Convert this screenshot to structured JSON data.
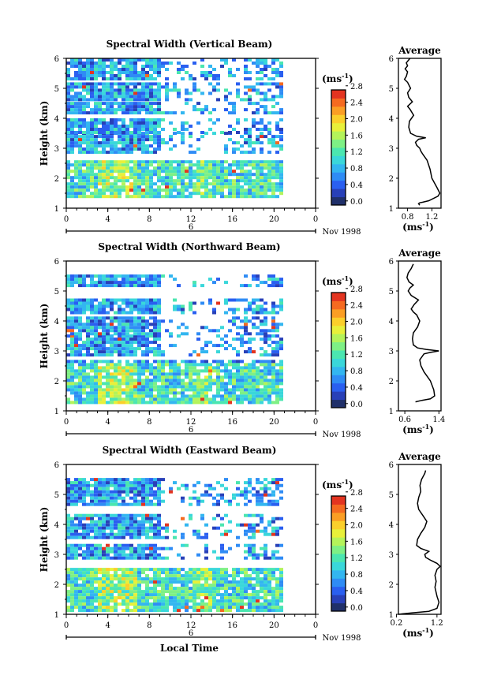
{
  "xlabel": "Local Time",
  "date_label": "Nov 1998",
  "day_label": "6",
  "unit_label": "(ms",
  "unit_sup": "-1",
  "unit_close": ")",
  "ylabel": "Height (km)",
  "colorbar_ticks": [
    "0.0",
    "0.4",
    "0.8",
    "1.2",
    "1.6",
    "2.0",
    "2.4",
    "2.8"
  ],
  "colorbar_colors": [
    "#20306a",
    "#2840b8",
    "#2a5ff0",
    "#2f8cf5",
    "#33b6f0",
    "#3ad7da",
    "#4be6b0",
    "#7ef085",
    "#b4f35a",
    "#e8f03a",
    "#fbcf2b",
    "#fb9e24",
    "#f56a20",
    "#e33420"
  ],
  "time_ticks": [
    "0",
    "4",
    "8",
    "12",
    "16",
    "20",
    "0"
  ],
  "chart_data": [
    {
      "type": "heatmap",
      "title": "Spectral Width (Vertical Beam)",
      "xlabel": "Local Time",
      "ylabel": "Height (km)",
      "xlim": [
        0,
        24
      ],
      "ylim": [
        1,
        6
      ],
      "x_ticks": [
        "0",
        "4",
        "8",
        "12",
        "16",
        "20",
        "0"
      ],
      "y_ticks": [
        "1",
        "2",
        "3",
        "4",
        "5",
        "6"
      ],
      "colorbar": {
        "label": "(ms-1)",
        "range": [
          0.0,
          2.8
        ]
      },
      "data_bands": [
        [
          1.35,
          2.6
        ],
        [
          2.85,
          3.55
        ],
        [
          3.55,
          4.0
        ],
        [
          4.15,
          4.55
        ],
        [
          4.6,
          5.2
        ],
        [
          5.35,
          6.0
        ]
      ],
      "average_profile": {
        "title": "Average",
        "xlabel": "(ms-1)",
        "xlim": [
          0.65,
          1.35
        ],
        "x_ticks": [
          "0.8",
          "1.2"
        ],
        "points": [
          [
            1.0,
            1.1
          ],
          [
            0.98,
            1.15
          ],
          [
            1.0,
            1.18
          ],
          [
            1.05,
            1.2
          ],
          [
            1.15,
            1.25
          ],
          [
            1.3,
            1.4
          ],
          [
            1.33,
            1.5
          ],
          [
            1.28,
            1.7
          ],
          [
            1.2,
            2.0
          ],
          [
            1.17,
            2.3
          ],
          [
            1.12,
            2.6
          ],
          [
            1.05,
            2.8
          ],
          [
            1.02,
            2.9
          ],
          [
            1.0,
            3.0
          ],
          [
            0.95,
            3.1
          ],
          [
            0.93,
            3.2
          ],
          [
            0.98,
            3.3
          ],
          [
            1.1,
            3.35
          ],
          [
            0.95,
            3.4
          ],
          [
            0.85,
            3.5
          ],
          [
            0.82,
            3.7
          ],
          [
            0.83,
            3.9
          ],
          [
            0.9,
            4.1
          ],
          [
            0.84,
            4.3
          ],
          [
            0.8,
            4.4
          ],
          [
            0.88,
            4.55
          ],
          [
            0.82,
            4.7
          ],
          [
            0.8,
            4.85
          ],
          [
            0.85,
            5.0
          ],
          [
            0.8,
            5.2
          ],
          [
            0.75,
            5.3
          ],
          [
            0.78,
            5.4
          ],
          [
            0.8,
            5.55
          ],
          [
            0.76,
            5.65
          ],
          [
            0.8,
            5.75
          ],
          [
            0.78,
            5.85
          ],
          [
            0.82,
            5.95
          ],
          [
            0.84,
            6.0
          ]
        ]
      }
    },
    {
      "type": "heatmap",
      "title": "Spectral Width (Northward Beam)",
      "xlabel": "Local Time",
      "ylabel": "Height (km)",
      "xlim": [
        0,
        24
      ],
      "ylim": [
        1,
        6
      ],
      "x_ticks": [
        "0",
        "4",
        "8",
        "12",
        "16",
        "20",
        "0"
      ],
      "y_ticks": [
        "1",
        "2",
        "3",
        "4",
        "5",
        "6"
      ],
      "colorbar": {
        "label": "(ms-1)",
        "range": [
          0.0,
          2.8
        ]
      },
      "data_bands": [
        [
          1.25,
          2.7
        ],
        [
          2.85,
          3.55
        ],
        [
          3.55,
          4.15
        ],
        [
          4.25,
          4.75
        ],
        [
          5.2,
          5.55
        ]
      ],
      "average_profile": {
        "title": "Average",
        "xlabel": "(ms-1)",
        "xlim": [
          0.45,
          1.45
        ],
        "x_ticks": [
          "0.6",
          "1.4"
        ],
        "points": [
          [
            0.85,
            1.3
          ],
          [
            1.0,
            1.35
          ],
          [
            1.2,
            1.4
          ],
          [
            1.3,
            1.5
          ],
          [
            1.28,
            1.7
          ],
          [
            1.2,
            2.0
          ],
          [
            1.05,
            2.3
          ],
          [
            0.98,
            2.5
          ],
          [
            0.95,
            2.7
          ],
          [
            1.0,
            2.8
          ],
          [
            1.05,
            2.9
          ],
          [
            1.2,
            2.95
          ],
          [
            1.4,
            3.0
          ],
          [
            1.1,
            3.05
          ],
          [
            0.9,
            3.1
          ],
          [
            0.8,
            3.2
          ],
          [
            0.78,
            3.4
          ],
          [
            0.8,
            3.6
          ],
          [
            0.9,
            3.8
          ],
          [
            0.95,
            4.0
          ],
          [
            0.88,
            4.2
          ],
          [
            0.8,
            4.3
          ],
          [
            0.75,
            4.4
          ],
          [
            0.82,
            4.55
          ],
          [
            0.92,
            4.7
          ],
          [
            0.75,
            4.85
          ],
          [
            0.68,
            5.0
          ],
          [
            0.72,
            5.1
          ],
          [
            0.8,
            5.2
          ],
          [
            0.7,
            5.3
          ],
          [
            0.65,
            5.45
          ],
          [
            0.68,
            5.6
          ],
          [
            0.75,
            5.75
          ],
          [
            0.8,
            5.9
          ]
        ]
      }
    },
    {
      "type": "heatmap",
      "title": "Spectral Width (Eastward Beam)",
      "xlabel": "Local Time",
      "ylabel": "Height (km)",
      "xlim": [
        0,
        24
      ],
      "ylim": [
        1,
        6
      ],
      "x_ticks": [
        "0",
        "4",
        "8",
        "12",
        "16",
        "20",
        "0"
      ],
      "y_ticks": [
        "1",
        "2",
        "3",
        "4",
        "5",
        "6"
      ],
      "colorbar": {
        "label": "(ms-1)",
        "range": [
          0.0,
          2.8
        ]
      },
      "data_bands": [
        [
          1.15,
          2.55
        ],
        [
          2.85,
          3.35
        ],
        [
          3.55,
          4.35
        ],
        [
          4.7,
          5.35
        ],
        [
          5.4,
          5.55
        ]
      ],
      "average_profile": {
        "title": "Average",
        "xlabel": "(ms-1)",
        "xlim": [
          0.25,
          1.3
        ],
        "x_ticks": [
          "0.2",
          "1.2"
        ],
        "points": [
          [
            0.25,
            1.0
          ],
          [
            0.6,
            1.05
          ],
          [
            1.0,
            1.1
          ],
          [
            1.2,
            1.2
          ],
          [
            1.25,
            1.4
          ],
          [
            1.2,
            1.6
          ],
          [
            1.15,
            1.9
          ],
          [
            1.18,
            2.1
          ],
          [
            1.15,
            2.3
          ],
          [
            1.2,
            2.5
          ],
          [
            1.28,
            2.6
          ],
          [
            1.2,
            2.7
          ],
          [
            1.05,
            2.8
          ],
          [
            0.92,
            2.9
          ],
          [
            0.9,
            3.0
          ],
          [
            1.0,
            3.1
          ],
          [
            0.8,
            3.2
          ],
          [
            0.7,
            3.3
          ],
          [
            0.72,
            3.5
          ],
          [
            0.8,
            3.7
          ],
          [
            0.9,
            3.9
          ],
          [
            0.95,
            4.1
          ],
          [
            0.85,
            4.3
          ],
          [
            0.75,
            4.5
          ],
          [
            0.72,
            4.7
          ],
          [
            0.75,
            4.9
          ],
          [
            0.8,
            5.1
          ],
          [
            0.78,
            5.3
          ],
          [
            0.82,
            5.5
          ],
          [
            0.9,
            5.7
          ],
          [
            0.92,
            5.8
          ]
        ]
      }
    }
  ]
}
